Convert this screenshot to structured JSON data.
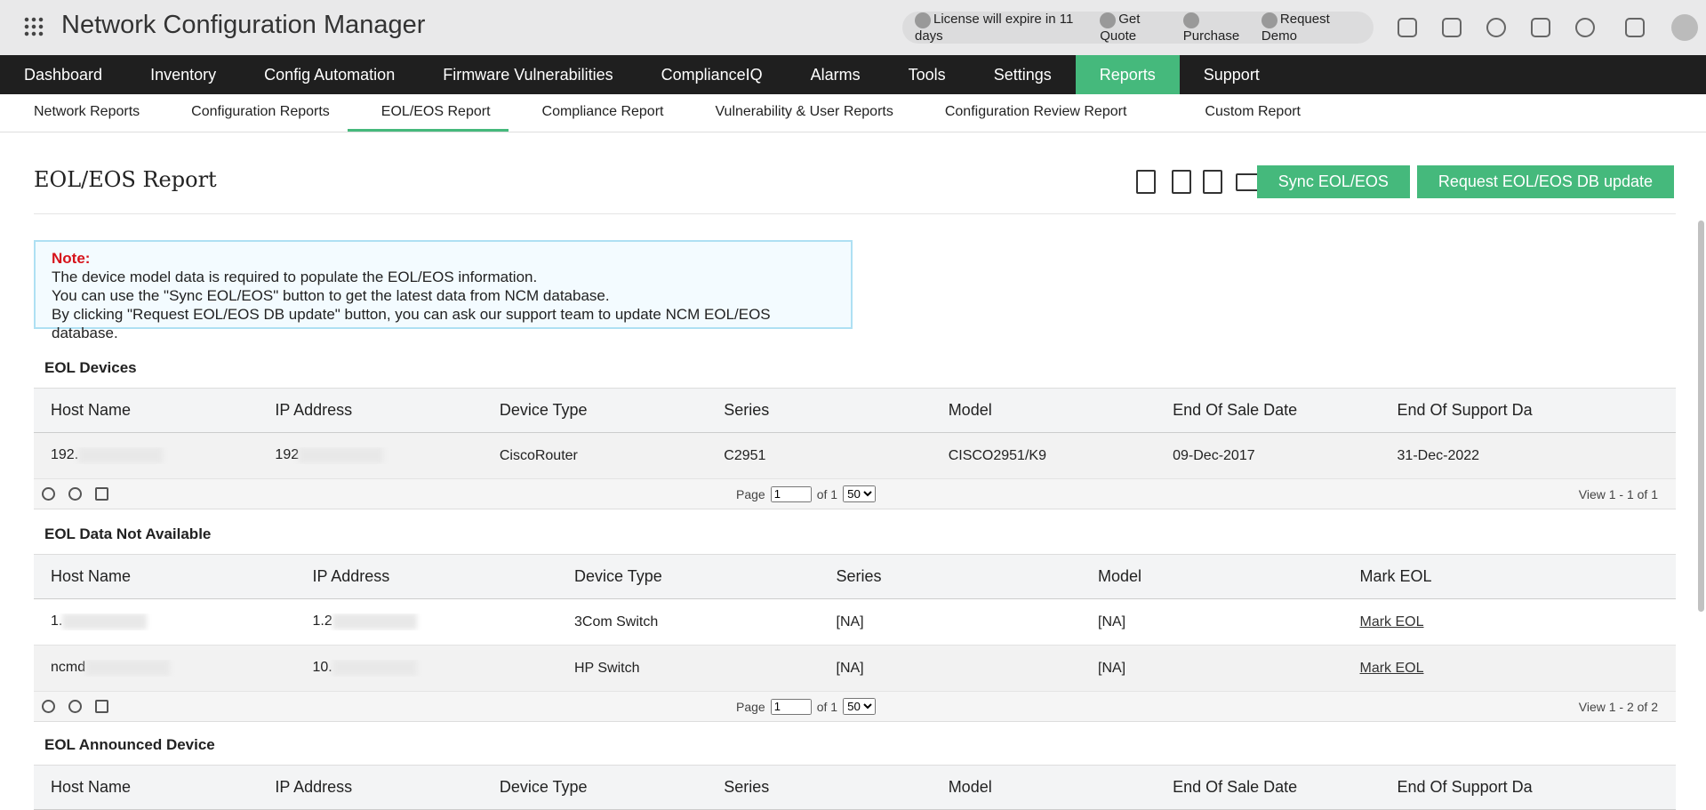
{
  "header": {
    "title": "Network Configuration Manager",
    "license": "License will expire in 11 days",
    "links": [
      "Get Quote",
      "Purchase",
      "Request Demo"
    ]
  },
  "nav": [
    "Dashboard",
    "Inventory",
    "Config Automation",
    "Firmware Vulnerabilities",
    "ComplianceIQ",
    "Alarms",
    "Tools",
    "Settings",
    "Reports",
    "Support"
  ],
  "subnav": [
    "Network Reports",
    "Configuration Reports",
    "EOL/EOS Report",
    "Compliance Report",
    "Vulnerability & User Reports",
    "Configuration Review Report",
    "Custom Report"
  ],
  "page": {
    "title": "EOL/EOS Report",
    "buttons": [
      "Sync EOL/EOS",
      "Request EOL/EOS DB update"
    ]
  },
  "note": {
    "label": "Note:",
    "lines": [
      "The device model data is required to populate the EOL/EOS information.",
      "You can use the \"Sync EOL/EOS\" button to get the latest data from NCM database.",
      "By clicking \"Request EOL/EOS DB update\" button, you can ask our support team to update NCM EOL/EOS database."
    ]
  },
  "sections": [
    {
      "title": "EOL Devices",
      "columns": [
        "Host Name",
        "IP Address",
        "Device Type",
        "Series",
        "Model",
        "End Of Sale Date",
        "End Of Support Da"
      ],
      "rows": [
        [
          "192.",
          "192",
          "CiscoRouter",
          "C2951",
          "CISCO2951/K9",
          "09-Dec-2017",
          "31-Dec-2022"
        ]
      ],
      "pager": {
        "page": "Page",
        "current": "1",
        "of": "of 1",
        "size": "50",
        "view": "View 1 - 1 of 1"
      }
    },
    {
      "title": "EOL Data Not Available",
      "columns": [
        "Host Name",
        "IP Address",
        "Device Type",
        "Series",
        "Model",
        "Mark EOL"
      ],
      "rows": [
        [
          "1.",
          "1.2",
          "3Com Switch",
          "[NA]",
          "[NA]",
          "Mark EOL"
        ],
        [
          "ncmd",
          "10.",
          "HP Switch",
          "[NA]",
          "[NA]",
          "Mark EOL"
        ]
      ],
      "pager": {
        "page": "Page",
        "current": "1",
        "of": "of 1",
        "size": "50",
        "view": "View 1 - 2 of 2"
      }
    },
    {
      "title": "EOL Announced Device",
      "columns": [
        "Host Name",
        "IP Address",
        "Device Type",
        "Series",
        "Model",
        "End Of Sale Date",
        "End Of Support Da"
      ],
      "rows": []
    }
  ]
}
